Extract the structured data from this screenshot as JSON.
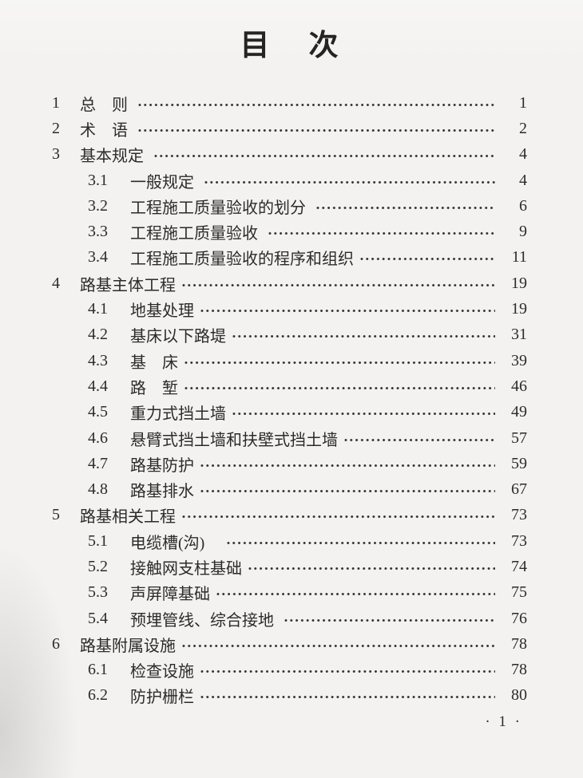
{
  "page": {
    "title": "目　次",
    "footer_page": "· 1 ·"
  },
  "toc": {
    "entries": [
      {
        "num": "1",
        "label": "总　则 ",
        "page": "1",
        "level": 1
      },
      {
        "num": "2",
        "label": "术　语 ",
        "page": "2",
        "level": 1
      },
      {
        "num": "3",
        "label": "基本规定 ",
        "page": "4",
        "level": 1
      },
      {
        "num": "3.1",
        "label": "一般规定 ",
        "page": "4",
        "level": 2
      },
      {
        "num": "3.2",
        "label": "工程施工质量验收的划分 ",
        "page": "6",
        "level": 2
      },
      {
        "num": "3.3",
        "label": "工程施工质量验收 ",
        "page": "9",
        "level": 2
      },
      {
        "num": "3.4",
        "label": "工程施工质量验收的程序和组织",
        "page": "11",
        "level": 2
      },
      {
        "num": "4",
        "label": "路基主体工程",
        "page": "19",
        "level": 1
      },
      {
        "num": "4.1",
        "label": "地基处理",
        "page": "19",
        "level": 2
      },
      {
        "num": "4.2",
        "label": "基床以下路堤",
        "page": "31",
        "level": 2
      },
      {
        "num": "4.3",
        "label": "基　床",
        "page": "39",
        "level": 2
      },
      {
        "num": "4.4",
        "label": "路　堑",
        "page": "46",
        "level": 2
      },
      {
        "num": "4.5",
        "label": "重力式挡土墙",
        "page": "49",
        "level": 2
      },
      {
        "num": "4.6",
        "label": "悬臂式挡土墙和扶壁式挡土墙",
        "page": "57",
        "level": 2
      },
      {
        "num": "4.7",
        "label": "路基防护",
        "page": "59",
        "level": 2
      },
      {
        "num": "4.8",
        "label": "路基排水",
        "page": "67",
        "level": 2
      },
      {
        "num": "5",
        "label": "路基相关工程",
        "page": "73",
        "level": 1
      },
      {
        "num": "5.1",
        "label": "电缆槽(沟)　",
        "page": "73",
        "level": 2
      },
      {
        "num": "5.2",
        "label": "接触网支柱基础",
        "page": "74",
        "level": 2
      },
      {
        "num": "5.3",
        "label": "声屏障基础",
        "page": "75",
        "level": 2
      },
      {
        "num": "5.4",
        "label": "预埋管线、综合接地 ",
        "page": "76",
        "level": 2
      },
      {
        "num": "6",
        "label": "路基附属设施",
        "page": "78",
        "level": 1
      },
      {
        "num": "6.1",
        "label": "检查设施",
        "page": "78",
        "level": 2
      },
      {
        "num": "6.2",
        "label": "防护栅栏",
        "page": "80",
        "level": 2
      }
    ]
  }
}
